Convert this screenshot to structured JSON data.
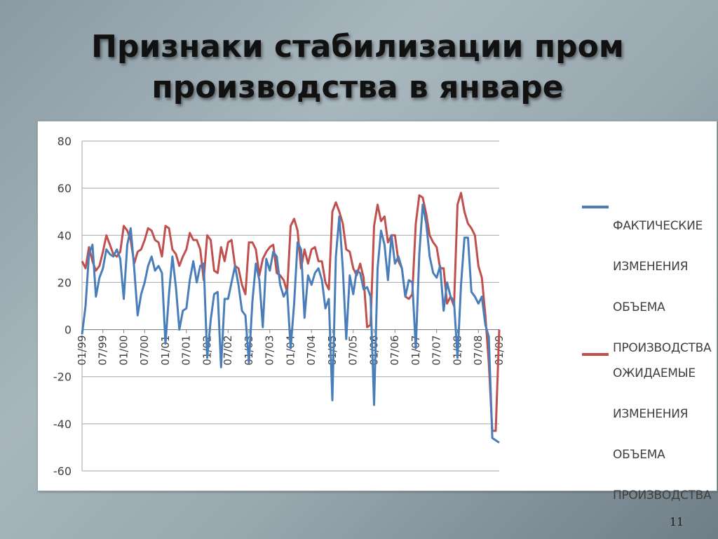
{
  "slide": {
    "title_line1": "Признаки стабилизации пром",
    "title_line2": "производства в январе",
    "page_number": "11"
  },
  "chart_data": {
    "type": "line",
    "ylim": [
      -60,
      80
    ],
    "yticks": [
      80,
      60,
      40,
      20,
      0,
      -20,
      -40,
      -60
    ],
    "xtick_labels": [
      "01/99",
      "07/99",
      "01/00",
      "07/00",
      "01/01",
      "07/01",
      "01/02",
      "07/02",
      "01/03",
      "07/03",
      "01/04",
      "07/04",
      "01/05",
      "07/05",
      "01/06",
      "07/06",
      "01/07",
      "07/07",
      "01/08",
      "07/08",
      "01/09"
    ],
    "legend_position": "right",
    "grid": "horizontal",
    "series": [
      {
        "name": "ФАКТИЧЕСКИЕ ИЗМЕНЕНИЯ ОБЪЕМА ПРОИЗВОДСТВА",
        "color": "#4a7ebb",
        "values": [
          -2,
          10,
          32,
          36,
          14,
          22,
          26,
          34,
          32,
          31,
          34,
          30,
          13,
          36,
          43,
          26,
          6,
          15,
          20,
          27,
          31,
          25,
          27,
          24,
          -6,
          15,
          31,
          18,
          0,
          8,
          9,
          21,
          29,
          20,
          27,
          28,
          -12,
          4,
          15,
          16,
          -16,
          13,
          13,
          20,
          27,
          19,
          8,
          6,
          -14,
          12,
          28,
          21,
          1,
          30,
          25,
          33,
          31,
          19,
          14,
          17,
          -8,
          11,
          37,
          34,
          5,
          23,
          19,
          24,
          26,
          21,
          9,
          13,
          -30,
          31,
          48,
          26,
          -4,
          23,
          15,
          25,
          24,
          17,
          18,
          14,
          -32,
          26,
          42,
          36,
          21,
          40,
          28,
          31,
          26,
          14,
          21,
          20,
          -8,
          32,
          53,
          45,
          31,
          24,
          22,
          27,
          8,
          20,
          14,
          12,
          -12,
          19,
          39,
          39,
          16,
          14,
          11,
          14,
          2,
          -3,
          -46,
          -47,
          -48
        ],
        "label_lines": [
          "ФАКТИЧЕСКИЕ",
          "ИЗМЕНЕНИЯ",
          "ОБЪЕМА",
          "ПРОИЗВОДСТВА"
        ]
      },
      {
        "name": "ОЖИДАЕМЫЕ ИЗМЕНЕНИЯ ОБЪЕМА ПРОИЗВОДСТВА",
        "color": "#c0504d",
        "values": [
          29,
          26,
          35,
          29,
          25,
          27,
          33,
          40,
          36,
          32,
          31,
          33,
          44,
          42,
          38,
          28,
          33,
          34,
          38,
          43,
          42,
          38,
          37,
          31,
          44,
          43,
          34,
          32,
          27,
          31,
          34,
          41,
          38,
          38,
          34,
          21,
          40,
          38,
          25,
          24,
          35,
          29,
          37,
          38,
          27,
          26,
          19,
          15,
          37,
          37,
          34,
          23,
          30,
          33,
          35,
          36,
          24,
          23,
          21,
          16,
          44,
          47,
          42,
          26,
          34,
          28,
          34,
          35,
          29,
          29,
          20,
          17,
          50,
          54,
          50,
          45,
          34,
          33,
          26,
          23,
          28,
          22,
          1,
          2,
          44,
          53,
          46,
          48,
          37,
          40,
          40,
          29,
          26,
          14,
          13,
          15,
          45,
          57,
          56,
          49,
          40,
          37,
          35,
          26,
          26,
          11,
          14,
          10,
          53,
          58,
          50,
          45,
          43,
          40,
          27,
          22,
          6,
          -14,
          -43,
          -43,
          0
        ],
        "label_lines": [
          "ОЖИДАЕМЫЕ",
          "ИЗМЕНЕНИЯ",
          "ОБЪЕМА",
          "ПРОИЗВОДСТВА"
        ]
      }
    ]
  }
}
